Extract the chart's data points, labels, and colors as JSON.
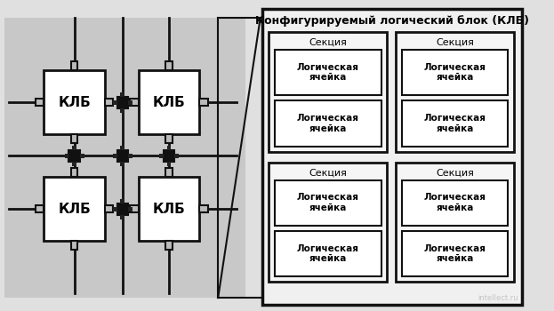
{
  "title_right": "Конфигурируемый логический блок (КЛБ)",
  "section_label": "Секция",
  "cell_label": "Логическая\nячейка",
  "klb_label": "КЛБ",
  "font_size_title": 9,
  "font_size_section": 8,
  "font_size_cell": 7.5,
  "font_size_klb": 11
}
